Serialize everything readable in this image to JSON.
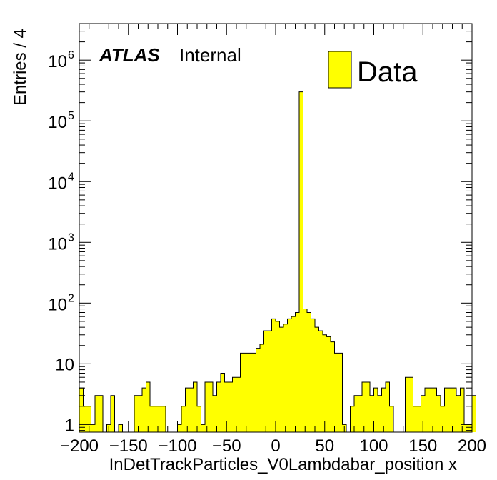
{
  "chart_data": {
    "type": "bar",
    "histogram": true,
    "xlabel": "InDetTrackParticles_V0Lambdabar_position x",
    "ylabel": "Entries / 4",
    "xlim": [
      -200,
      200
    ],
    "ylim": [
      0.75,
      4000000
    ],
    "yscale": "log",
    "bin_width": 4,
    "x_ticks": [
      -200,
      -150,
      -100,
      -50,
      0,
      50,
      100,
      150,
      200
    ],
    "x_tick_labels": [
      "−200",
      "−150",
      "−100",
      "−50",
      "0",
      "50",
      "100",
      "150",
      "200"
    ],
    "y_tick_labels": [
      {
        "value": 1,
        "base": "1",
        "exp": ""
      },
      {
        "value": 10,
        "base": "10",
        "exp": ""
      },
      {
        "value": 100,
        "base": "10",
        "exp": "2"
      },
      {
        "value": 1000,
        "base": "10",
        "exp": "3"
      },
      {
        "value": 10000,
        "base": "10",
        "exp": "4"
      },
      {
        "value": 100000,
        "base": "10",
        "exp": "5"
      },
      {
        "value": 1000000,
        "base": "10",
        "exp": "6"
      }
    ],
    "fill_color": "#ffff00",
    "line_color": "#000000",
    "bin_edges_start": -200,
    "series": [
      {
        "name": "Data",
        "values": [
          4,
          2,
          2,
          1,
          3,
          3,
          0,
          1,
          3,
          0,
          1,
          0,
          0,
          0,
          3,
          3,
          4,
          5,
          2,
          2,
          2,
          2,
          0,
          0,
          0,
          1,
          2,
          4,
          4,
          5,
          2,
          1,
          5,
          5,
          3,
          5,
          7,
          5,
          5,
          6,
          6,
          15,
          15,
          15,
          15,
          18,
          21,
          35,
          35,
          55,
          50,
          40,
          45,
          55,
          60,
          70,
          300000,
          80,
          70,
          55,
          40,
          35,
          30,
          28,
          23,
          15,
          15,
          1,
          0,
          2,
          3,
          3,
          5,
          5,
          3,
          4,
          3,
          4,
          5,
          2,
          0,
          0,
          0,
          6,
          6,
          2,
          2,
          3,
          4,
          4,
          4,
          3,
          2,
          4,
          4,
          4,
          3,
          4,
          1,
          1,
          3
        ]
      }
    ],
    "legend": {
      "entries": [
        "Data"
      ],
      "position": "top-right"
    },
    "annotations": {
      "experiment": "ATLAS",
      "status": "Internal"
    }
  }
}
